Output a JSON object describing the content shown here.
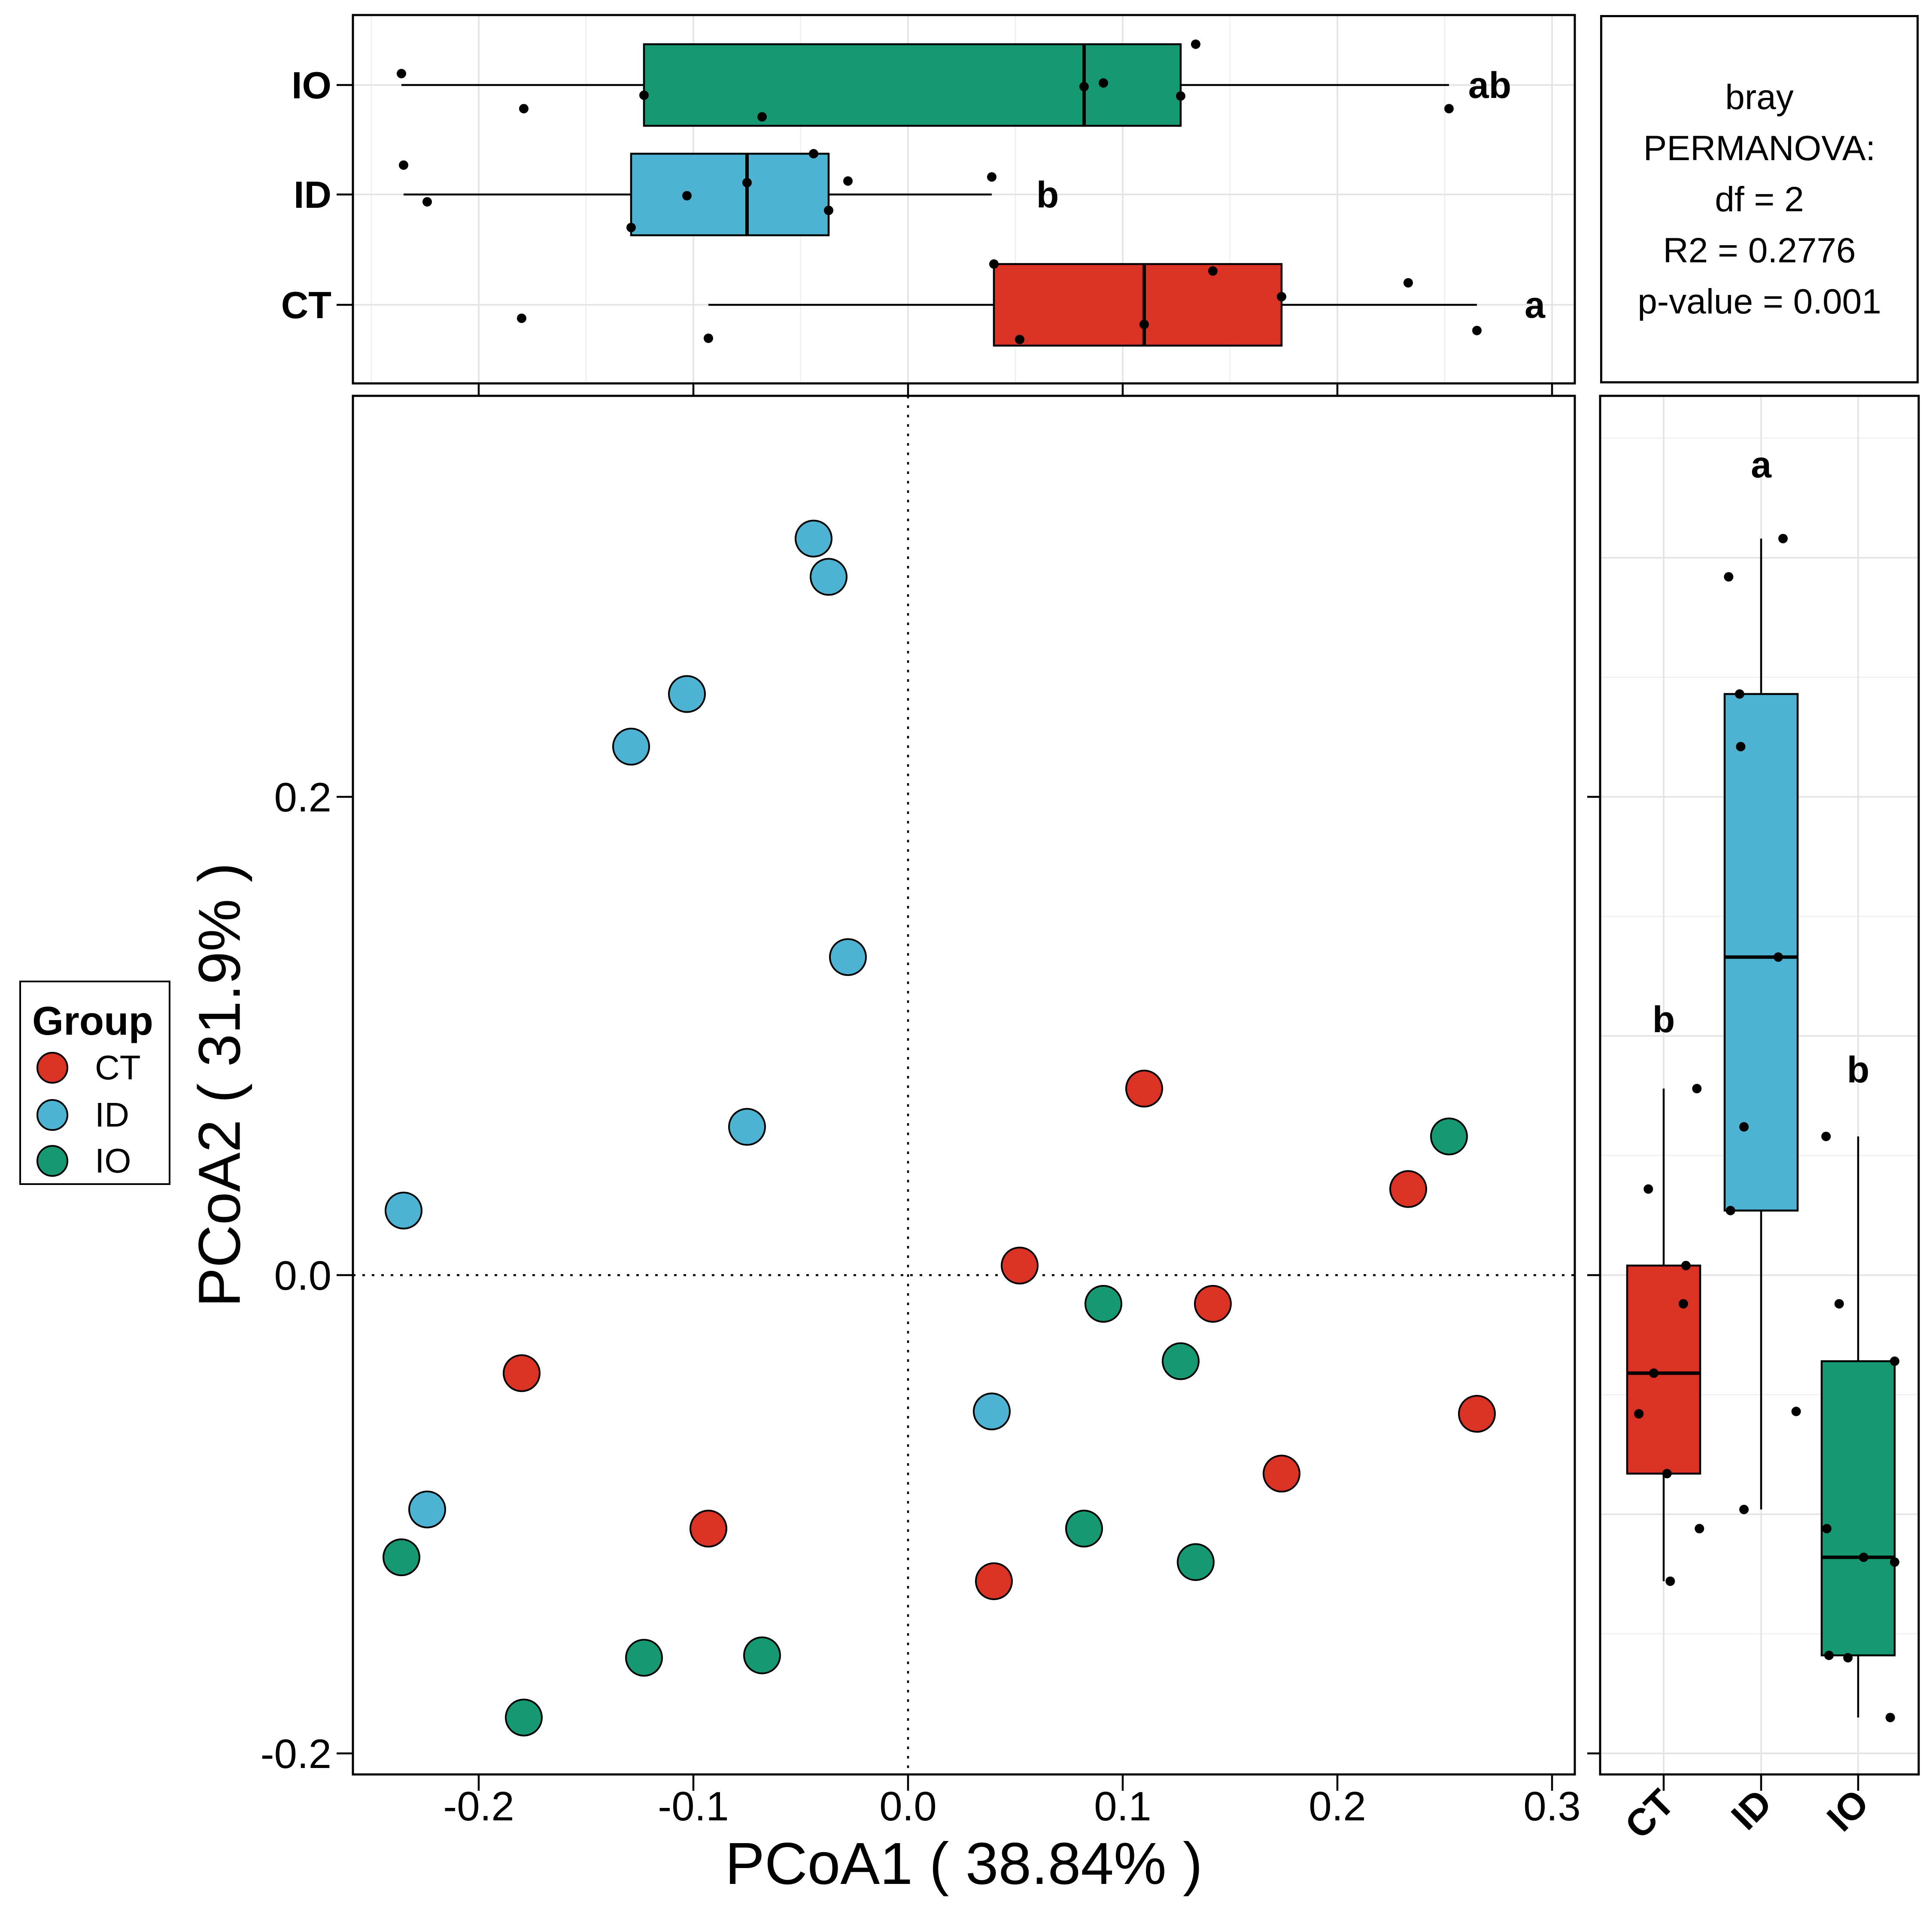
{
  "chart_data": {
    "type": "scatter",
    "subtype": "pcoa-ordination-with-marginal-boxplots",
    "xlabel": "PCoA1 ( 38.84% )",
    "ylabel": "PCoA2 ( 31.9% )",
    "xlim": [
      -0.2586,
      0.3106
    ],
    "ylim": [
      -0.2097,
      0.3677
    ],
    "grid_main_panel": false,
    "zero_lines_dotted": true,
    "x_ticks": [
      {
        "v": -0.2,
        "label": "-0.2"
      },
      {
        "v": -0.1,
        "label": "-0.1"
      },
      {
        "v": 0.0,
        "label": "0.0"
      },
      {
        "v": 0.1,
        "label": "0.1"
      },
      {
        "v": 0.2,
        "label": "0.2"
      },
      {
        "v": 0.3,
        "label": "0.3"
      }
    ],
    "y_ticks": [
      {
        "v": 0.2,
        "label": "0.2"
      },
      {
        "v": 0.0,
        "label": "0.0"
      },
      {
        "v": -0.2,
        "label": "-0.2"
      }
    ],
    "series": [
      {
        "name": "CT",
        "color": "#DB3226",
        "points": [
          [
            0.11,
            0.078
          ],
          [
            0.233,
            0.036
          ],
          [
            0.052,
            0.004
          ],
          [
            0.142,
            -0.012
          ],
          [
            -0.18,
            -0.041
          ],
          [
            0.265,
            -0.058
          ],
          [
            0.174,
            -0.083
          ],
          [
            -0.093,
            -0.106
          ],
          [
            0.04,
            -0.128
          ]
        ]
      },
      {
        "name": "ID",
        "color": "#4EB3D3",
        "points": [
          [
            -0.044,
            0.308
          ],
          [
            -0.037,
            0.292
          ],
          [
            -0.103,
            0.243
          ],
          [
            -0.129,
            0.221
          ],
          [
            -0.028,
            0.133
          ],
          [
            -0.075,
            0.062
          ],
          [
            -0.235,
            0.027
          ],
          [
            0.039,
            -0.057
          ],
          [
            -0.224,
            -0.098
          ]
        ]
      },
      {
        "name": "IO",
        "color": "#169873",
        "points": [
          [
            0.252,
            0.058
          ],
          [
            0.091,
            -0.012
          ],
          [
            0.127,
            -0.036
          ],
          [
            0.082,
            -0.106
          ],
          [
            -0.236,
            -0.118
          ],
          [
            0.134,
            -0.12
          ],
          [
            -0.068,
            -0.159
          ],
          [
            -0.123,
            -0.16
          ],
          [
            -0.179,
            -0.185
          ]
        ]
      }
    ],
    "top_boxplot": {
      "axis": "PCoA1",
      "rows": [
        {
          "group": "IO",
          "letter": "ab",
          "letter_x": 0.271,
          "whisker_lo": -0.236,
          "q1": -0.123,
          "median": 0.082,
          "q3": 0.127,
          "whisker_hi": 0.252,
          "points": [
            [
              -0.236,
              -0.28
            ],
            [
              -0.179,
              0.58
            ],
            [
              -0.123,
              0.25
            ],
            [
              -0.068,
              0.78
            ],
            [
              0.082,
              0.04
            ],
            [
              0.091,
              -0.05
            ],
            [
              0.127,
              0.27
            ],
            [
              0.134,
              -1.0
            ],
            [
              0.252,
              0.58
            ]
          ]
        },
        {
          "group": "ID",
          "letter": "b",
          "letter_x": 0.065,
          "whisker_lo": -0.235,
          "q1": -0.129,
          "median": -0.075,
          "q3": -0.037,
          "whisker_hi": 0.039,
          "points": [
            [
              -0.235,
              -0.72
            ],
            [
              -0.224,
              0.18
            ],
            [
              -0.129,
              0.81
            ],
            [
              -0.103,
              0.03
            ],
            [
              -0.075,
              -0.29
            ],
            [
              -0.044,
              -1.0
            ],
            [
              -0.037,
              0.39
            ],
            [
              -0.028,
              -0.33
            ],
            [
              0.039,
              -0.43
            ]
          ]
        },
        {
          "group": "CT",
          "letter": "a",
          "letter_x": 0.292,
          "whisker_lo": -0.093,
          "q1": 0.04,
          "median": 0.11,
          "q3": 0.174,
          "whisker_hi": 0.265,
          "points": [
            [
              -0.18,
              0.33
            ],
            [
              -0.093,
              0.82
            ],
            [
              0.04,
              -1.0
            ],
            [
              0.052,
              0.85
            ],
            [
              0.11,
              0.48
            ],
            [
              0.142,
              -0.83
            ],
            [
              0.174,
              -0.2
            ],
            [
              0.233,
              -0.54
            ],
            [
              0.265,
              0.63
            ]
          ]
        }
      ]
    },
    "right_boxplot": {
      "axis": "PCoA2",
      "cols": [
        {
          "group": "CT",
          "letter": "b",
          "letter_y": 0.107,
          "whisker_lo": -0.128,
          "q1": -0.083,
          "median": -0.041,
          "q3": 0.004,
          "whisker_hi": 0.078,
          "points": [
            [
              0.078,
              0.91
            ],
            [
              0.036,
              -0.42
            ],
            [
              0.004,
              0.61
            ],
            [
              -0.012,
              0.54
            ],
            [
              -0.041,
              -0.27
            ],
            [
              -0.058,
              -0.68
            ],
            [
              -0.083,
              0.09
            ],
            [
              -0.106,
              0.98
            ],
            [
              -0.128,
              0.18
            ]
          ]
        },
        {
          "group": "ID",
          "letter": "a",
          "letter_y": 0.339,
          "whisker_lo": -0.098,
          "q1": 0.027,
          "median": 0.133,
          "q3": 0.243,
          "whisker_hi": 0.308,
          "points": [
            [
              0.308,
              0.6
            ],
            [
              0.292,
              -0.89
            ],
            [
              0.243,
              -0.59
            ],
            [
              0.221,
              -0.56
            ],
            [
              0.133,
              0.47
            ],
            [
              0.062,
              -0.47
            ],
            [
              0.027,
              -0.84
            ],
            [
              -0.057,
              0.96
            ],
            [
              -0.098,
              -0.47
            ]
          ]
        },
        {
          "group": "IO",
          "letter": "b",
          "letter_y": 0.086,
          "whisker_lo": -0.185,
          "q1": -0.159,
          "median": -0.118,
          "q3": -0.036,
          "whisker_hi": 0.058,
          "points": [
            [
              0.058,
              -0.88
            ],
            [
              -0.012,
              -0.52
            ],
            [
              -0.036,
              1.0
            ],
            [
              -0.106,
              -0.86
            ],
            [
              -0.118,
              0.15
            ],
            [
              -0.12,
              1.0
            ],
            [
              -0.159,
              -0.8
            ],
            [
              -0.16,
              -0.28
            ],
            [
              -0.185,
              0.88
            ]
          ]
        }
      ]
    },
    "stats_box": {
      "lines": [
        "bray",
        "PERMANOVA:",
        "df = 2",
        "R2 = 0.2776",
        "p-value = 0.001"
      ]
    },
    "legend": {
      "title": "Group",
      "items": [
        {
          "label": "CT",
          "color": "#DB3226"
        },
        {
          "label": "ID",
          "color": "#4EB3D3"
        },
        {
          "label": "IO",
          "color": "#169873"
        }
      ]
    }
  }
}
